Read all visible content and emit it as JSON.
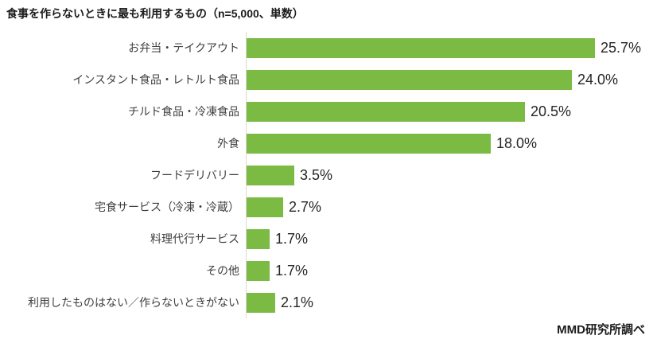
{
  "title": "食事を作らないときに最も利用するもの（n=5,000、単数）",
  "source": "MMD研究所調べ",
  "colors": {
    "bar": "#7bbb43",
    "axis_line": "#d9d9d9",
    "category_label": "#404040",
    "value_label": "#262626",
    "title": "#1a1a1a"
  },
  "chart_data": {
    "type": "bar",
    "orientation": "horizontal",
    "title": "食事を作らないときに最も利用するもの（n=5,000、単数）",
    "categories": [
      "お弁当・テイクアウト",
      "インスタント食品・レトルト食品",
      "チルド食品・冷凍食品",
      "外食",
      "フードデリバリー",
      "宅食サービス（冷凍・冷蔵）",
      "料理代行サービス",
      "その他",
      "利用したものはない／作らないときがない"
    ],
    "values": [
      25.7,
      24.0,
      20.5,
      18.0,
      3.5,
      2.7,
      1.7,
      1.7,
      2.1
    ],
    "value_suffix": "%",
    "xlim": [
      0,
      29
    ],
    "grid": false,
    "legend": false,
    "data_labels": true,
    "source": "MMD研究所調べ"
  }
}
